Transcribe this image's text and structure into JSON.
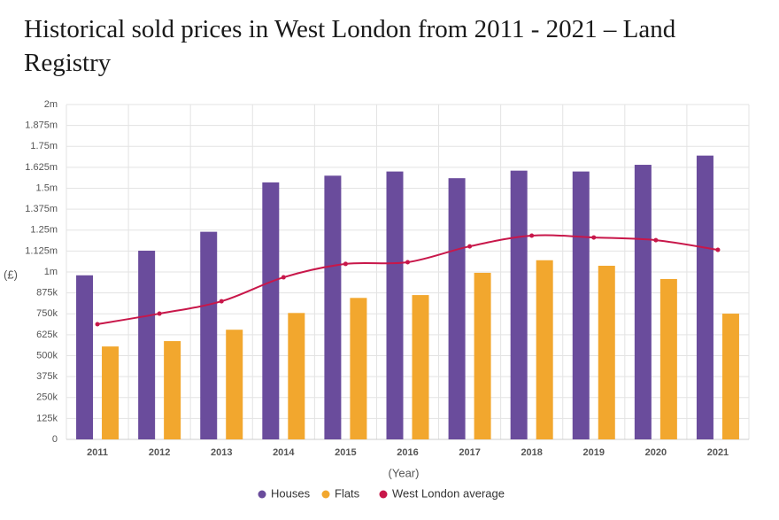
{
  "chart_data": {
    "type": "bar",
    "title": "Historical sold prices in West London from 2011 - 2021 – Land Registry",
    "x_label": "(Year)",
    "y_label": "(£)",
    "categories": [
      "2011",
      "2012",
      "2013",
      "2014",
      "2015",
      "2016",
      "2017",
      "2018",
      "2019",
      "2020",
      "2021"
    ],
    "series": [
      {
        "name": "Houses",
        "type": "bar",
        "color": "#6a4c9c",
        "values": [
          980000,
          1127000,
          1240000,
          1535000,
          1575000,
          1600000,
          1560000,
          1605000,
          1600000,
          1640000,
          1695000
        ]
      },
      {
        "name": "Flats",
        "type": "bar",
        "color": "#f2a72e",
        "values": [
          555000,
          587000,
          655000,
          755000,
          845000,
          862000,
          995000,
          1070000,
          1037000,
          958000,
          751000
        ]
      },
      {
        "name": "West London average",
        "type": "line",
        "color": "#c8174a",
        "values": [
          688000,
          751000,
          825000,
          968000,
          1048000,
          1058000,
          1153000,
          1217000,
          1206000,
          1190000,
          1132000
        ]
      }
    ],
    "ylim": [
      0,
      2000000
    ],
    "yticks": [
      0,
      {
        "value": 125000,
        "label": "125k"
      },
      {
        "value": 250000,
        "label": "250k"
      },
      {
        "value": 375000,
        "label": "375k"
      },
      {
        "value": 500000,
        "label": "500k"
      },
      {
        "value": 625000,
        "label": "625k"
      },
      {
        "value": 750000,
        "label": "750k"
      },
      {
        "value": 875000,
        "label": "875k"
      },
      {
        "value": 1000000,
        "label": "1m"
      },
      {
        "value": 1125000,
        "label": "1.125m"
      },
      {
        "value": 1250000,
        "label": "1.25m"
      },
      {
        "value": 1375000,
        "label": "1.375m"
      },
      {
        "value": 1500000,
        "label": "1.5m"
      },
      {
        "value": 1625000,
        "label": "1.625m"
      },
      {
        "value": 1750000,
        "label": "1.75m"
      },
      {
        "value": 1875000,
        "label": "1.875m"
      },
      {
        "value": 2000000,
        "label": "2m"
      }
    ],
    "grid": true,
    "legend": "bottom"
  }
}
